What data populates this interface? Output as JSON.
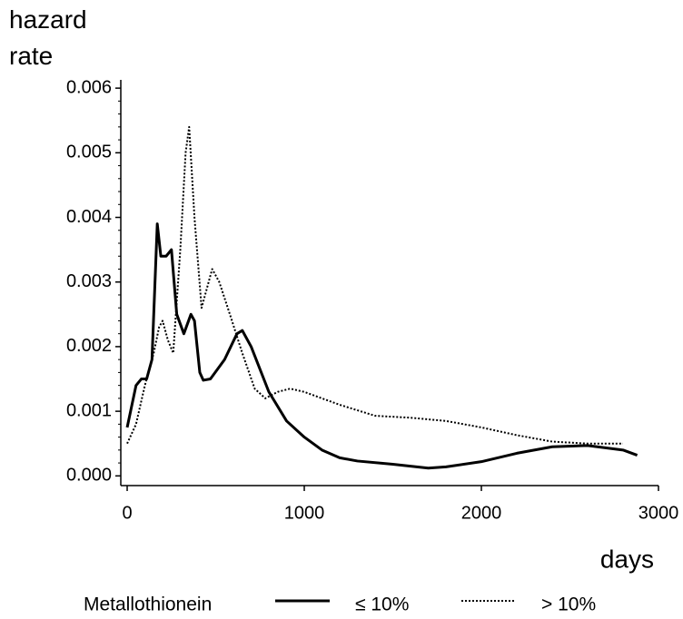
{
  "chart_data": {
    "type": "line",
    "ylabel": "hazard rate",
    "xlabel": "days",
    "legend_title": "Metallothionein",
    "legend": "bottom",
    "xlim": [
      -36,
      3000
    ],
    "xticks": [
      0,
      1000,
      2000,
      3000
    ],
    "ylim": [
      -0.00015,
      0.0061
    ],
    "yticks": [
      {
        "value": 0,
        "label": "0.000"
      },
      0.001,
      0.002,
      0.003,
      0.004,
      0.005,
      0.006
    ],
    "series": [
      {
        "name": "≤ 10%",
        "color": "#000000",
        "style": "solid",
        "x": [
          0,
          50,
          80,
          110,
          140,
          170,
          190,
          220,
          250,
          280,
          320,
          360,
          380,
          410,
          430,
          470,
          550,
          620,
          650,
          700,
          800,
          900,
          1000,
          1100,
          1200,
          1300,
          1500,
          1700,
          1800,
          2000,
          2200,
          2400,
          2600,
          2800,
          2880
        ],
        "values": [
          0.00075,
          0.0014,
          0.0015,
          0.0015,
          0.0018,
          0.0039,
          0.0034,
          0.0034,
          0.0035,
          0.0025,
          0.0022,
          0.0025,
          0.0024,
          0.0016,
          0.00148,
          0.0015,
          0.0018,
          0.0022,
          0.00225,
          0.002,
          0.0013,
          0.00085,
          0.0006,
          0.0004,
          0.00028,
          0.00023,
          0.00018,
          0.00012,
          0.00014,
          0.00022,
          0.00035,
          0.00045,
          0.00047,
          0.0004,
          0.00032
        ]
      },
      {
        "name": "> 10%",
        "color": "#000000",
        "style": "dotted",
        "x": [
          0,
          50,
          100,
          150,
          180,
          200,
          230,
          260,
          300,
          330,
          350,
          380,
          420,
          450,
          480,
          520,
          580,
          650,
          720,
          780,
          850,
          920,
          1000,
          1200,
          1400,
          1600,
          1800,
          2000,
          2200,
          2400,
          2600,
          2800
        ],
        "values": [
          0.0005,
          0.0008,
          0.0014,
          0.0019,
          0.0023,
          0.0024,
          0.0021,
          0.0019,
          0.0035,
          0.005,
          0.0054,
          0.004,
          0.0026,
          0.0029,
          0.0032,
          0.003,
          0.0025,
          0.0019,
          0.00135,
          0.0012,
          0.0013,
          0.00135,
          0.0013,
          0.0011,
          0.00093,
          0.0009,
          0.00085,
          0.00075,
          0.00063,
          0.00053,
          0.0005,
          0.0005
        ]
      }
    ]
  }
}
